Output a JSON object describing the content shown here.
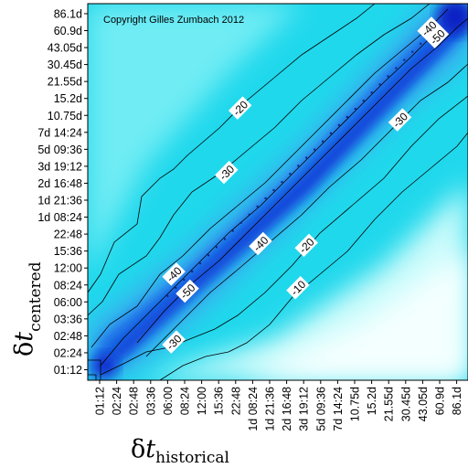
{
  "chart_data": {
    "type": "heatmap",
    "annotation": "Copyright Gilles Zumbach 2012",
    "xlabel": {
      "symbol": "δ",
      "var": "t",
      "sub": "historical"
    },
    "ylabel": {
      "symbol": "δ",
      "var": "t",
      "sub": "centered"
    },
    "x_ticks": [
      "01:12",
      "02:24",
      "02:48",
      "03:36",
      "06:00",
      "08:24",
      "12:00",
      "15:36",
      "22:48",
      "1d 08:24",
      "1d 21:36",
      "2d 16:48",
      "3d 19:12",
      "5d 09:36",
      "7d 14:24",
      "10.75d",
      "15.2d",
      "21.55d",
      "30.45d",
      "43.05d",
      "60.9d",
      "86.1d"
    ],
    "y_ticks": [
      "01:12",
      "02:24",
      "02:48",
      "03:36",
      "06:00",
      "08:24",
      "12:00",
      "15:36",
      "22:48",
      "1d 08:24",
      "1d 21:36",
      "2d 16:48",
      "3d 19:12",
      "5d 09:36",
      "7d 14:24",
      "10.75d",
      "15.2d",
      "21.55d",
      "30.45d",
      "43.05d",
      "60.9d",
      "86.1d"
    ],
    "contour_labels": [
      {
        "text": "-10",
        "x": 11.7,
        "y": 4.8
      },
      {
        "text": "-20",
        "x": 12.2,
        "y": 7.3
      },
      {
        "text": "-20",
        "x": 8.3,
        "y": 15.4
      },
      {
        "text": "-30",
        "x": 7.5,
        "y": 11.6
      },
      {
        "text": "-30",
        "x": 17.7,
        "y": 14.7
      },
      {
        "text": "-30",
        "x": 4.4,
        "y": 1.6
      },
      {
        "text": "-40",
        "x": 9.5,
        "y": 7.4
      },
      {
        "text": "-40",
        "x": 4.4,
        "y": 5.6
      },
      {
        "text": "-40",
        "x": 19.4,
        "y": 20.1
      },
      {
        "text": "-50",
        "x": 5.2,
        "y": 4.6
      },
      {
        "text": "-50",
        "x": 19.9,
        "y": 19.6
      }
    ]
  }
}
